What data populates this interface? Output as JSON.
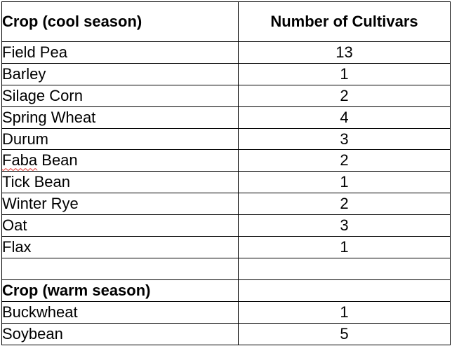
{
  "table": {
    "header": {
      "crop_label": "Crop (cool season)",
      "count_label": "Number of Cultivars"
    },
    "cool_season_rows": [
      {
        "crop": "Field Pea",
        "count": "13"
      },
      {
        "crop": "Barley",
        "count": "1"
      },
      {
        "crop": "Silage Corn",
        "count": "2"
      },
      {
        "crop": "Spring Wheat",
        "count": "4"
      },
      {
        "crop": "Durum",
        "count": "3"
      },
      {
        "crop_word1": "Faba",
        "crop_word2": " Bean",
        "count": "2"
      },
      {
        "crop": "Tick Bean",
        "count": "1"
      },
      {
        "crop": "Winter Rye",
        "count": "2"
      },
      {
        "crop": "Oat",
        "count": "3"
      },
      {
        "crop": "Flax",
        "count": "1"
      }
    ],
    "warm_section_label": "Crop (warm season)",
    "warm_season_rows": [
      {
        "crop": "Buckwheat",
        "count": "1"
      },
      {
        "crop": "Soybean",
        "count": "5"
      }
    ]
  }
}
